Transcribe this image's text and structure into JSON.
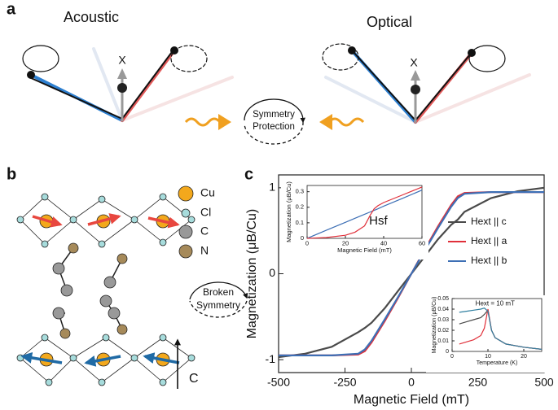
{
  "panel_a": {
    "label": "a",
    "acoustic": "Acoustic",
    "optical": "Optical",
    "axis_left": "X",
    "axis_right": "X",
    "center": [
      "Symmetry",
      "Protection"
    ]
  },
  "panel_b": {
    "label": "b",
    "legend": [
      "Cu",
      "Cl",
      "C",
      "N"
    ],
    "center": [
      "Broken",
      "Symmetry"
    ],
    "axis": "C"
  },
  "panel_c": {
    "label": "c"
  },
  "chart_data": [
    {
      "type": "line",
      "xlabel": "Magnetic Field (mT)",
      "ylabel": "Magnetization (μB/Cu)",
      "x": [
        -500,
        -400,
        -300,
        -200,
        -175,
        -150,
        -100,
        -50,
        0,
        50,
        100,
        150,
        175,
        200,
        300,
        400,
        500
      ],
      "xlim": [
        -500,
        500
      ],
      "xticks": [
        -500,
        -250,
        0,
        250,
        500
      ],
      "ylim": [
        -1.15,
        1.15
      ],
      "yticks": [
        -1,
        0,
        1
      ],
      "legend": "right",
      "series": [
        {
          "name": "Hext || c",
          "color": "#4a4a4a",
          "values": [
            -0.97,
            -0.93,
            -0.85,
            -0.68,
            -0.63,
            -0.57,
            -0.4,
            -0.2,
            0,
            0.2,
            0.4,
            0.57,
            0.63,
            0.72,
            0.88,
            0.96,
            1.0
          ]
        },
        {
          "name": "Hext || a",
          "color": "#e0303a",
          "values": [
            -0.95,
            -0.95,
            -0.95,
            -0.94,
            -0.9,
            -0.8,
            -0.55,
            -0.28,
            0,
            0.28,
            0.55,
            0.8,
            0.9,
            0.94,
            0.95,
            0.95,
            0.95
          ]
        },
        {
          "name": "Hext || b",
          "color": "#3d6fb5",
          "values": [
            -0.95,
            -0.95,
            -0.95,
            -0.93,
            -0.88,
            -0.78,
            -0.53,
            -0.27,
            0,
            0.27,
            0.53,
            0.78,
            0.88,
            0.93,
            0.95,
            0.95,
            0.95
          ]
        }
      ]
    },
    {
      "type": "line",
      "xlabel": "Magnetic Field (mT)",
      "ylabel": "Magnetization (μB/Cu)",
      "annotation": "Hsf",
      "x": [
        0,
        10,
        20,
        25,
        30,
        33,
        35,
        37,
        40,
        50,
        60
      ],
      "xlim": [
        0,
        60
      ],
      "xticks": [
        0,
        20,
        40,
        60
      ],
      "ylim": [
        0,
        0.34
      ],
      "yticks": [
        0,
        0.1,
        0.2,
        0.3
      ],
      "series": [
        {
          "color": "#3d6fb5",
          "values": [
            0,
            0.052,
            0.103,
            0.129,
            0.155,
            0.17,
            0.18,
            0.19,
            0.207,
            0.258,
            0.31
          ]
        },
        {
          "color": "#e0303a",
          "values": [
            0,
            0.005,
            0.02,
            0.04,
            0.08,
            0.15,
            0.19,
            0.21,
            0.23,
            0.28,
            0.33
          ]
        }
      ]
    },
    {
      "type": "line",
      "xlabel": "Temperature (K)",
      "ylabel": "Magnetization (μB/Cu)",
      "annotation": "Hext = 10 mT",
      "x": [
        2,
        4,
        6,
        8,
        9,
        10,
        11,
        12,
        15,
        20,
        25
      ],
      "xlim": [
        0,
        25
      ],
      "xticks": [
        0,
        10,
        20
      ],
      "ylim": [
        0,
        0.05
      ],
      "yticks": [
        0,
        0.01,
        0.02,
        0.03,
        0.04,
        0.05
      ],
      "series": [
        {
          "color": "#4a4a4a",
          "values": [
            0.026,
            0.028,
            0.03,
            0.032,
            0.035,
            0.039,
            0.02,
            0.013,
            0.007,
            0.004,
            0.002
          ]
        },
        {
          "color": "#e0303a",
          "values": [
            0.007,
            0.009,
            0.011,
            0.015,
            0.022,
            0.04,
            0.02,
            0.013,
            0.007,
            0.004,
            0.002
          ]
        },
        {
          "color": "#2f7fa0",
          "values": [
            0.037,
            0.038,
            0.039,
            0.04,
            0.041,
            0.038,
            0.02,
            0.013,
            0.007,
            0.004,
            0.002
          ]
        }
      ]
    }
  ]
}
